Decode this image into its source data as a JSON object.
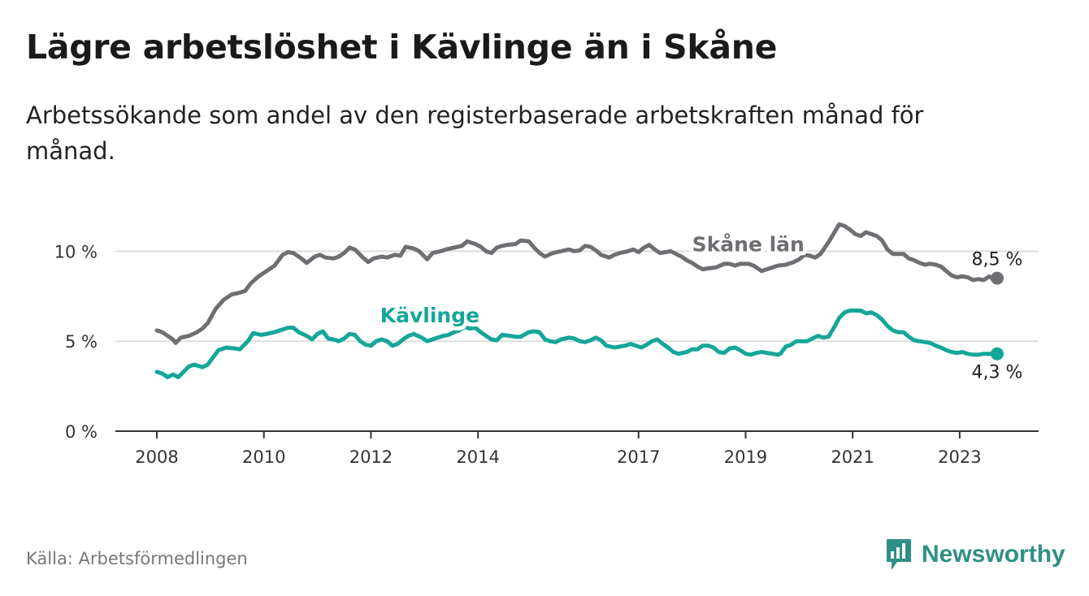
{
  "header": {
    "title": "Lägre arbetslöshet i Kävlinge än i Skåne",
    "subtitle": "Arbetssökande som andel av den registerbaserade arbetskraften månad för månad."
  },
  "footer": {
    "source": "Källa: Arbetsförmedlingen",
    "brand": "Newsworthy"
  },
  "colors": {
    "skane": "#6e6e73",
    "kavlinge": "#14a699",
    "brand": "#2f8f86",
    "axis": "#333333",
    "grid": "#dddddd"
  },
  "chart_data": {
    "type": "line",
    "title": "Lägre arbetslöshet i Kävlinge än i Skåne",
    "xlabel": "",
    "ylabel": "",
    "xlim": [
      2008.0,
      2023.7
    ],
    "ylim": [
      0,
      12.5
    ],
    "y_ticks": [
      {
        "value": 0,
        "label": "0 %"
      },
      {
        "value": 5,
        "label": "5 %"
      },
      {
        "value": 10,
        "label": "10 %"
      }
    ],
    "x_ticks": [
      {
        "value": 2008,
        "label": "2008"
      },
      {
        "value": 2010,
        "label": "2010"
      },
      {
        "value": 2012,
        "label": "2012"
      },
      {
        "value": 2014,
        "label": "2014"
      },
      {
        "value": 2017,
        "label": "2017"
      },
      {
        "value": 2019,
        "label": "2019"
      },
      {
        "value": 2021,
        "label": "2021"
      },
      {
        "value": 2023,
        "label": "2023"
      }
    ],
    "series": [
      {
        "name": "Skåne län",
        "color": "#6e6e73",
        "end_label": "8,5 %",
        "points": [
          [
            2008.0,
            5.6
          ],
          [
            2008.1,
            5.5
          ],
          [
            2008.2,
            5.3
          ],
          [
            2008.3,
            5.1
          ],
          [
            2008.35,
            4.9
          ],
          [
            2008.45,
            5.2
          ],
          [
            2008.6,
            5.3
          ],
          [
            2008.75,
            5.5
          ],
          [
            2008.85,
            5.7
          ],
          [
            2008.95,
            6.0
          ],
          [
            2009.1,
            6.8
          ],
          [
            2009.25,
            7.3
          ],
          [
            2009.4,
            7.6
          ],
          [
            2009.55,
            7.7
          ],
          [
            2009.65,
            7.8
          ],
          [
            2009.75,
            8.2
          ],
          [
            2009.9,
            8.6
          ],
          [
            2010.0,
            8.8
          ],
          [
            2010.1,
            9.0
          ],
          [
            2010.2,
            9.2
          ],
          [
            2010.35,
            9.8
          ],
          [
            2010.45,
            9.95
          ],
          [
            2010.55,
            9.9
          ],
          [
            2010.7,
            9.6
          ],
          [
            2010.8,
            9.35
          ],
          [
            2010.95,
            9.7
          ],
          [
            2011.05,
            9.8
          ],
          [
            2011.15,
            9.65
          ],
          [
            2011.3,
            9.6
          ],
          [
            2011.4,
            9.7
          ],
          [
            2011.5,
            9.9
          ],
          [
            2011.6,
            10.2
          ],
          [
            2011.7,
            10.1
          ],
          [
            2011.85,
            9.65
          ],
          [
            2011.95,
            9.4
          ],
          [
            2012.05,
            9.6
          ],
          [
            2012.2,
            9.7
          ],
          [
            2012.3,
            9.65
          ],
          [
            2012.45,
            9.8
          ],
          [
            2012.55,
            9.75
          ],
          [
            2012.65,
            10.25
          ],
          [
            2012.8,
            10.15
          ],
          [
            2012.9,
            10.0
          ],
          [
            2013.0,
            9.7
          ],
          [
            2013.05,
            9.55
          ],
          [
            2013.15,
            9.9
          ],
          [
            2013.3,
            10.0
          ],
          [
            2013.4,
            10.1
          ],
          [
            2013.55,
            10.2
          ],
          [
            2013.7,
            10.3
          ],
          [
            2013.8,
            10.55
          ],
          [
            2013.95,
            10.4
          ],
          [
            2014.05,
            10.25
          ],
          [
            2014.15,
            10.0
          ],
          [
            2014.25,
            9.9
          ],
          [
            2014.35,
            10.2
          ],
          [
            2014.45,
            10.3
          ],
          [
            2014.55,
            10.35
          ],
          [
            2014.7,
            10.4
          ],
          [
            2014.8,
            10.6
          ],
          [
            2014.95,
            10.55
          ],
          [
            2015.05,
            10.2
          ],
          [
            2015.15,
            9.9
          ],
          [
            2015.25,
            9.7
          ],
          [
            2015.4,
            9.9
          ],
          [
            2015.55,
            10.0
          ],
          [
            2015.7,
            10.1
          ],
          [
            2015.8,
            10.0
          ],
          [
            2015.9,
            10.05
          ],
          [
            2016.0,
            10.3
          ],
          [
            2016.1,
            10.25
          ],
          [
            2016.2,
            10.05
          ],
          [
            2016.3,
            9.8
          ],
          [
            2016.45,
            9.65
          ],
          [
            2016.55,
            9.8
          ],
          [
            2016.65,
            9.9
          ],
          [
            2016.8,
            10.0
          ],
          [
            2016.9,
            10.1
          ],
          [
            2017.0,
            9.95
          ],
          [
            2017.1,
            10.2
          ],
          [
            2017.2,
            10.35
          ],
          [
            2017.3,
            10.1
          ],
          [
            2017.4,
            9.9
          ],
          [
            2017.5,
            9.95
          ],
          [
            2017.6,
            10.0
          ],
          [
            2017.7,
            9.85
          ],
          [
            2017.8,
            9.7
          ],
          [
            2017.9,
            9.5
          ],
          [
            2018.0,
            9.35
          ],
          [
            2018.1,
            9.15
          ],
          [
            2018.2,
            9.0
          ],
          [
            2018.3,
            9.05
          ],
          [
            2018.45,
            9.1
          ],
          [
            2018.6,
            9.3
          ],
          [
            2018.7,
            9.3
          ],
          [
            2018.8,
            9.2
          ],
          [
            2018.9,
            9.3
          ],
          [
            2019.05,
            9.3
          ],
          [
            2019.15,
            9.2
          ],
          [
            2019.25,
            9.0
          ],
          [
            2019.3,
            8.9
          ],
          [
            2019.45,
            9.05
          ],
          [
            2019.6,
            9.2
          ],
          [
            2019.75,
            9.25
          ],
          [
            2019.9,
            9.4
          ],
          [
            2020.0,
            9.55
          ],
          [
            2020.1,
            9.8
          ],
          [
            2020.2,
            9.75
          ],
          [
            2020.3,
            9.65
          ],
          [
            2020.4,
            9.85
          ],
          [
            2020.55,
            10.5
          ],
          [
            2020.65,
            11.0
          ],
          [
            2020.75,
            11.5
          ],
          [
            2020.85,
            11.4
          ],
          [
            2020.95,
            11.2
          ],
          [
            2021.05,
            10.95
          ],
          [
            2021.15,
            10.85
          ],
          [
            2021.25,
            11.05
          ],
          [
            2021.35,
            10.95
          ],
          [
            2021.45,
            10.85
          ],
          [
            2021.55,
            10.6
          ],
          [
            2021.65,
            10.1
          ],
          [
            2021.75,
            9.85
          ],
          [
            2021.85,
            9.85
          ],
          [
            2021.95,
            9.85
          ],
          [
            2022.05,
            9.6
          ],
          [
            2022.15,
            9.5
          ],
          [
            2022.25,
            9.35
          ],
          [
            2022.35,
            9.25
          ],
          [
            2022.45,
            9.3
          ],
          [
            2022.55,
            9.25
          ],
          [
            2022.65,
            9.15
          ],
          [
            2022.75,
            8.9
          ],
          [
            2022.85,
            8.65
          ],
          [
            2022.95,
            8.55
          ],
          [
            2023.05,
            8.6
          ],
          [
            2023.15,
            8.55
          ],
          [
            2023.25,
            8.4
          ],
          [
            2023.35,
            8.45
          ],
          [
            2023.45,
            8.4
          ],
          [
            2023.55,
            8.6
          ],
          [
            2023.6,
            8.5
          ],
          [
            2023.7,
            8.5
          ]
        ]
      },
      {
        "name": "Kävlinge",
        "color": "#14a699",
        "end_label": "4,3 %",
        "points": [
          [
            2008.0,
            3.3
          ],
          [
            2008.1,
            3.2
          ],
          [
            2008.2,
            3.0
          ],
          [
            2008.3,
            3.15
          ],
          [
            2008.4,
            3.0
          ],
          [
            2008.5,
            3.3
          ],
          [
            2008.6,
            3.6
          ],
          [
            2008.7,
            3.7
          ],
          [
            2008.85,
            3.55
          ],
          [
            2008.95,
            3.7
          ],
          [
            2009.05,
            4.1
          ],
          [
            2009.15,
            4.5
          ],
          [
            2009.3,
            4.65
          ],
          [
            2009.45,
            4.6
          ],
          [
            2009.55,
            4.55
          ],
          [
            2009.7,
            5.0
          ],
          [
            2009.8,
            5.45
          ],
          [
            2009.95,
            5.35
          ],
          [
            2010.05,
            5.4
          ],
          [
            2010.2,
            5.5
          ],
          [
            2010.3,
            5.6
          ],
          [
            2010.45,
            5.75
          ],
          [
            2010.55,
            5.75
          ],
          [
            2010.65,
            5.5
          ],
          [
            2010.8,
            5.3
          ],
          [
            2010.9,
            5.1
          ],
          [
            2011.0,
            5.4
          ],
          [
            2011.1,
            5.55
          ],
          [
            2011.2,
            5.15
          ],
          [
            2011.3,
            5.1
          ],
          [
            2011.4,
            5.0
          ],
          [
            2011.5,
            5.15
          ],
          [
            2011.6,
            5.4
          ],
          [
            2011.7,
            5.35
          ],
          [
            2011.8,
            5.0
          ],
          [
            2011.9,
            4.8
          ],
          [
            2012.0,
            4.75
          ],
          [
            2012.1,
            5.0
          ],
          [
            2012.2,
            5.1
          ],
          [
            2012.3,
            5.0
          ],
          [
            2012.4,
            4.75
          ],
          [
            2012.5,
            4.85
          ],
          [
            2012.6,
            5.1
          ],
          [
            2012.7,
            5.3
          ],
          [
            2012.8,
            5.4
          ],
          [
            2012.95,
            5.2
          ],
          [
            2013.05,
            5.0
          ],
          [
            2013.15,
            5.1
          ],
          [
            2013.25,
            5.2
          ],
          [
            2013.35,
            5.3
          ],
          [
            2013.45,
            5.35
          ],
          [
            2013.55,
            5.5
          ],
          [
            2013.65,
            5.6
          ],
          [
            2013.75,
            5.8
          ],
          [
            2013.85,
            5.7
          ],
          [
            2013.95,
            5.75
          ],
          [
            2014.05,
            5.5
          ],
          [
            2014.15,
            5.3
          ],
          [
            2014.25,
            5.1
          ],
          [
            2014.35,
            5.05
          ],
          [
            2014.45,
            5.35
          ],
          [
            2014.6,
            5.3
          ],
          [
            2014.7,
            5.25
          ],
          [
            2014.8,
            5.25
          ],
          [
            2014.95,
            5.5
          ],
          [
            2015.05,
            5.55
          ],
          [
            2015.15,
            5.5
          ],
          [
            2015.25,
            5.1
          ],
          [
            2015.35,
            5.0
          ],
          [
            2015.45,
            4.95
          ],
          [
            2015.55,
            5.1
          ],
          [
            2015.7,
            5.2
          ],
          [
            2015.8,
            5.15
          ],
          [
            2015.9,
            5.0
          ],
          [
            2016.0,
            4.95
          ],
          [
            2016.1,
            5.05
          ],
          [
            2016.2,
            5.2
          ],
          [
            2016.3,
            5.05
          ],
          [
            2016.4,
            4.75
          ],
          [
            2016.55,
            4.65
          ],
          [
            2016.65,
            4.7
          ],
          [
            2016.75,
            4.75
          ],
          [
            2016.85,
            4.85
          ],
          [
            2016.95,
            4.75
          ],
          [
            2017.05,
            4.65
          ],
          [
            2017.15,
            4.8
          ],
          [
            2017.25,
            5.0
          ],
          [
            2017.35,
            5.1
          ],
          [
            2017.45,
            4.85
          ],
          [
            2017.55,
            4.65
          ],
          [
            2017.65,
            4.4
          ],
          [
            2017.75,
            4.3
          ],
          [
            2017.9,
            4.4
          ],
          [
            2018.0,
            4.55
          ],
          [
            2018.1,
            4.55
          ],
          [
            2018.2,
            4.75
          ],
          [
            2018.3,
            4.75
          ],
          [
            2018.4,
            4.65
          ],
          [
            2018.5,
            4.4
          ],
          [
            2018.6,
            4.35
          ],
          [
            2018.7,
            4.6
          ],
          [
            2018.8,
            4.65
          ],
          [
            2018.9,
            4.5
          ],
          [
            2019.0,
            4.3
          ],
          [
            2019.1,
            4.25
          ],
          [
            2019.2,
            4.35
          ],
          [
            2019.3,
            4.4
          ],
          [
            2019.4,
            4.35
          ],
          [
            2019.5,
            4.3
          ],
          [
            2019.6,
            4.25
          ],
          [
            2019.65,
            4.3
          ],
          [
            2019.75,
            4.7
          ],
          [
            2019.85,
            4.8
          ],
          [
            2019.95,
            5.0
          ],
          [
            2020.05,
            5.0
          ],
          [
            2020.15,
            5.0
          ],
          [
            2020.25,
            5.15
          ],
          [
            2020.35,
            5.3
          ],
          [
            2020.45,
            5.2
          ],
          [
            2020.55,
            5.25
          ],
          [
            2020.65,
            5.75
          ],
          [
            2020.75,
            6.3
          ],
          [
            2020.85,
            6.6
          ],
          [
            2020.95,
            6.7
          ],
          [
            2021.05,
            6.7
          ],
          [
            2021.15,
            6.7
          ],
          [
            2021.25,
            6.55
          ],
          [
            2021.35,
            6.6
          ],
          [
            2021.45,
            6.45
          ],
          [
            2021.55,
            6.2
          ],
          [
            2021.65,
            5.85
          ],
          [
            2021.75,
            5.6
          ],
          [
            2021.85,
            5.5
          ],
          [
            2021.95,
            5.5
          ],
          [
            2022.05,
            5.25
          ],
          [
            2022.15,
            5.05
          ],
          [
            2022.25,
            5.0
          ],
          [
            2022.35,
            4.95
          ],
          [
            2022.45,
            4.9
          ],
          [
            2022.55,
            4.75
          ],
          [
            2022.65,
            4.65
          ],
          [
            2022.75,
            4.5
          ],
          [
            2022.85,
            4.4
          ],
          [
            2022.95,
            4.35
          ],
          [
            2023.05,
            4.4
          ],
          [
            2023.15,
            4.3
          ],
          [
            2023.25,
            4.25
          ],
          [
            2023.35,
            4.25
          ],
          [
            2023.45,
            4.3
          ],
          [
            2023.55,
            4.3
          ],
          [
            2023.7,
            4.3
          ]
        ]
      }
    ]
  }
}
